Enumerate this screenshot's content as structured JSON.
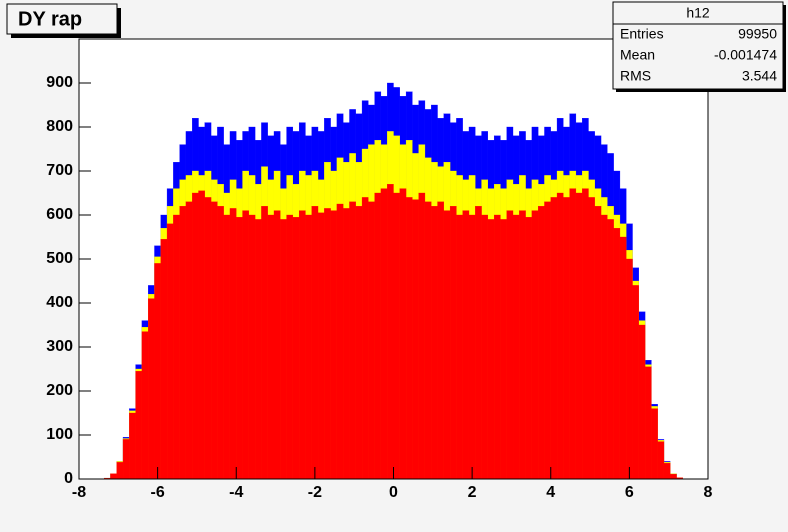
{
  "chart_data": {
    "type": "histogram",
    "title": "DY rap",
    "bins": [
      -8,
      -7.84,
      -7.68,
      -7.52,
      -7.36,
      -7.2,
      -7.04,
      -6.88,
      -6.72,
      -6.56,
      -6.4,
      -6.24,
      -6.08,
      -5.92,
      -5.76,
      -5.6,
      -5.44,
      -5.28,
      -5.12,
      -4.96,
      -4.8,
      -4.64,
      -4.48,
      -4.32,
      -4.16,
      -4,
      -3.84,
      -3.68,
      -3.52,
      -3.36,
      -3.2,
      -3.04,
      -2.88,
      -2.72,
      -2.56,
      -2.4,
      -2.24,
      -2.08,
      -1.92,
      -1.76,
      -1.6,
      -1.44,
      -1.28,
      -1.12,
      -0.96,
      -0.8,
      -0.64,
      -0.48,
      -0.32,
      -0.16,
      0,
      0.16,
      0.32,
      0.48,
      0.64,
      0.8,
      0.96,
      1.12,
      1.28,
      1.44,
      1.6,
      1.76,
      1.92,
      2.08,
      2.24,
      2.4,
      2.56,
      2.72,
      2.88,
      3.04,
      3.2,
      3.36,
      3.52,
      3.68,
      3.84,
      4,
      4.16,
      4.32,
      4.48,
      4.64,
      4.8,
      4.96,
      5.12,
      5.28,
      5.44,
      5.6,
      5.76,
      5.92,
      6.08,
      6.24,
      6.4,
      6.56,
      6.72,
      6.88,
      7.04,
      7.2,
      7.36,
      7.52,
      7.68,
      7.84,
      8
    ],
    "series": [
      {
        "color": "#0000ff",
        "values": [
          0,
          0,
          0,
          0,
          2,
          12,
          40,
          95,
          160,
          260,
          360,
          440,
          530,
          600,
          660,
          720,
          760,
          790,
          820,
          800,
          810,
          780,
          800,
          760,
          790,
          770,
          790,
          800,
          770,
          810,
          780,
          790,
          760,
          800,
          790,
          810,
          780,
          800,
          790,
          820,
          800,
          830,
          810,
          840,
          830,
          860,
          850,
          880,
          870,
          900,
          890,
          870,
          880,
          850,
          860,
          840,
          850,
          820,
          830,
          810,
          820,
          790,
          800,
          780,
          790,
          770,
          780,
          770,
          800,
          780,
          790,
          770,
          800,
          780,
          800,
          790,
          820,
          800,
          830,
          810,
          820,
          790,
          780,
          760,
          740,
          700,
          660,
          580,
          480,
          380,
          270,
          170,
          90,
          40,
          12,
          3,
          0,
          0,
          0,
          0
        ]
      },
      {
        "color": "#ffff00",
        "values": [
          0,
          0,
          0,
          0,
          2,
          12,
          40,
          92,
          155,
          250,
          345,
          420,
          505,
          570,
          620,
          660,
          680,
          690,
          700,
          690,
          700,
          680,
          670,
          650,
          680,
          660,
          700,
          690,
          670,
          710,
          680,
          700,
          660,
          690,
          670,
          700,
          690,
          700,
          680,
          720,
          700,
          730,
          720,
          740,
          720,
          750,
          760,
          770,
          760,
          790,
          780,
          760,
          770,
          740,
          760,
          730,
          720,
          710,
          720,
          700,
          690,
          680,
          690,
          660,
          680,
          660,
          670,
          660,
          680,
          670,
          690,
          660,
          680,
          670,
          690,
          680,
          700,
          690,
          700,
          690,
          700,
          680,
          660,
          640,
          620,
          600,
          580,
          520,
          450,
          360,
          260,
          165,
          88,
          38,
          12,
          3,
          0,
          0,
          0,
          0
        ]
      },
      {
        "color": "#ff0000",
        "values": [
          0,
          0,
          0,
          0,
          2,
          12,
          38,
          90,
          150,
          245,
          335,
          410,
          490,
          545,
          580,
          600,
          620,
          630,
          650,
          655,
          640,
          630,
          620,
          600,
          615,
          595,
          610,
          600,
          590,
          620,
          600,
          610,
          590,
          600,
          595,
          610,
          600,
          620,
          605,
          615,
          610,
          625,
          615,
          630,
          620,
          640,
          630,
          650,
          660,
          670,
          650,
          660,
          640,
          635,
          650,
          630,
          620,
          630,
          610,
          620,
          600,
          610,
          600,
          620,
          600,
          590,
          600,
          590,
          610,
          600,
          610,
          595,
          610,
          620,
          630,
          640,
          650,
          640,
          660,
          650,
          660,
          640,
          620,
          600,
          590,
          570,
          550,
          500,
          440,
          350,
          255,
          160,
          85,
          36,
          11,
          3,
          0,
          0,
          0,
          0
        ]
      }
    ],
    "xlim": [
      -8,
      8
    ],
    "xticks": [
      -8,
      -6,
      -4,
      -2,
      0,
      2,
      4,
      6,
      8
    ],
    "ylim": [
      0,
      1000
    ],
    "yticks": [
      0,
      100,
      200,
      300,
      400,
      500,
      600,
      700,
      800,
      900
    ],
    "stats": {
      "title": "h12",
      "rows": [
        [
          "Entries",
          99950
        ],
        [
          "Mean",
          -0.001474
        ],
        [
          "RMS",
          3.544
        ]
      ]
    }
  }
}
